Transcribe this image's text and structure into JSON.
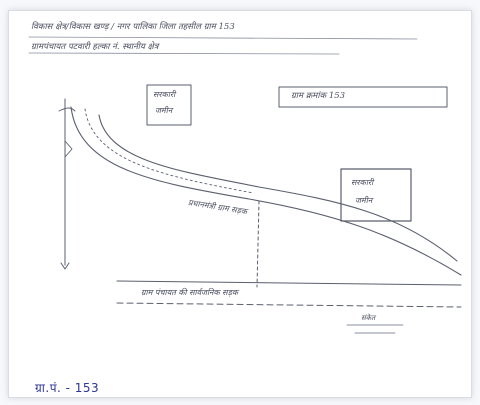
{
  "header": {
    "line1": "विकास क्षेत्र/विकास खण्ड़ / नगर पालिका जिला तहसील ग्राम 153",
    "line2": "ग्रामपंचायत पटवारी हल्का नं. स्थानीय क्षेत्र"
  },
  "boxes": {
    "top_left": [
      "सरकारी",
      "जमीन"
    ],
    "top_right": "ग्राम क्रमांक 153",
    "right": [
      "सरकारी",
      "जमीन"
    ]
  },
  "road_label": "प्रधानमंत्री ग्राम सड़क",
  "bottom_road_label": "ग्राम पंचायत की सार्वजनिक सड़क",
  "legend_small": "संकेत",
  "footer_note": "ग्रा.पं. - 153",
  "colors": {
    "pencil": "#5b5f6e",
    "pen_blue": "#2c3596",
    "paper": "#ffffff"
  }
}
